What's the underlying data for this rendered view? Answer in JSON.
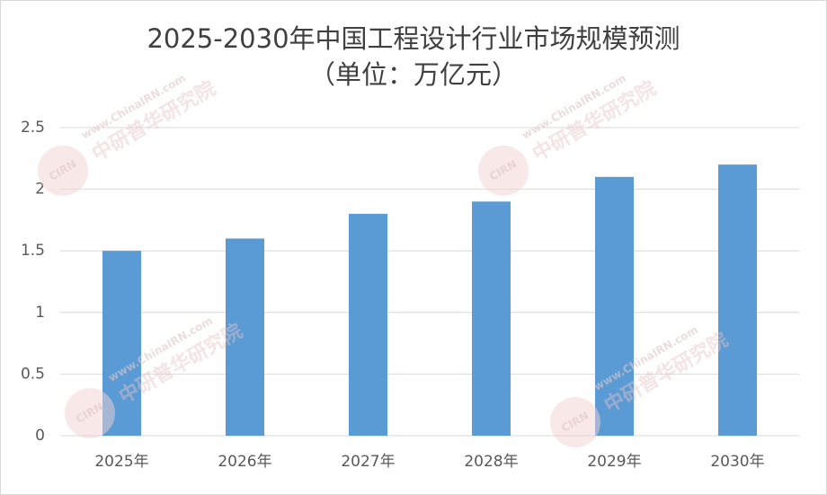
{
  "chart_data": {
    "type": "bar",
    "title": "2025-2030年中国工程设计行业市场规模预测",
    "subtitle": "（单位：万亿元）",
    "categories": [
      "2025年",
      "2026年",
      "2027年",
      "2028年",
      "2029年",
      "2030年"
    ],
    "values": [
      1.5,
      1.6,
      1.8,
      1.9,
      2.1,
      2.2
    ],
    "color": "#5b9bd5",
    "ylim": [
      0,
      2.5
    ],
    "yticks": [
      0,
      0.5,
      1,
      1.5,
      2,
      2.5
    ],
    "grid": true,
    "watermark": {
      "site": "www.ChinaIRN.com",
      "name": "中研普华研究院",
      "logo": "CIRN"
    }
  }
}
